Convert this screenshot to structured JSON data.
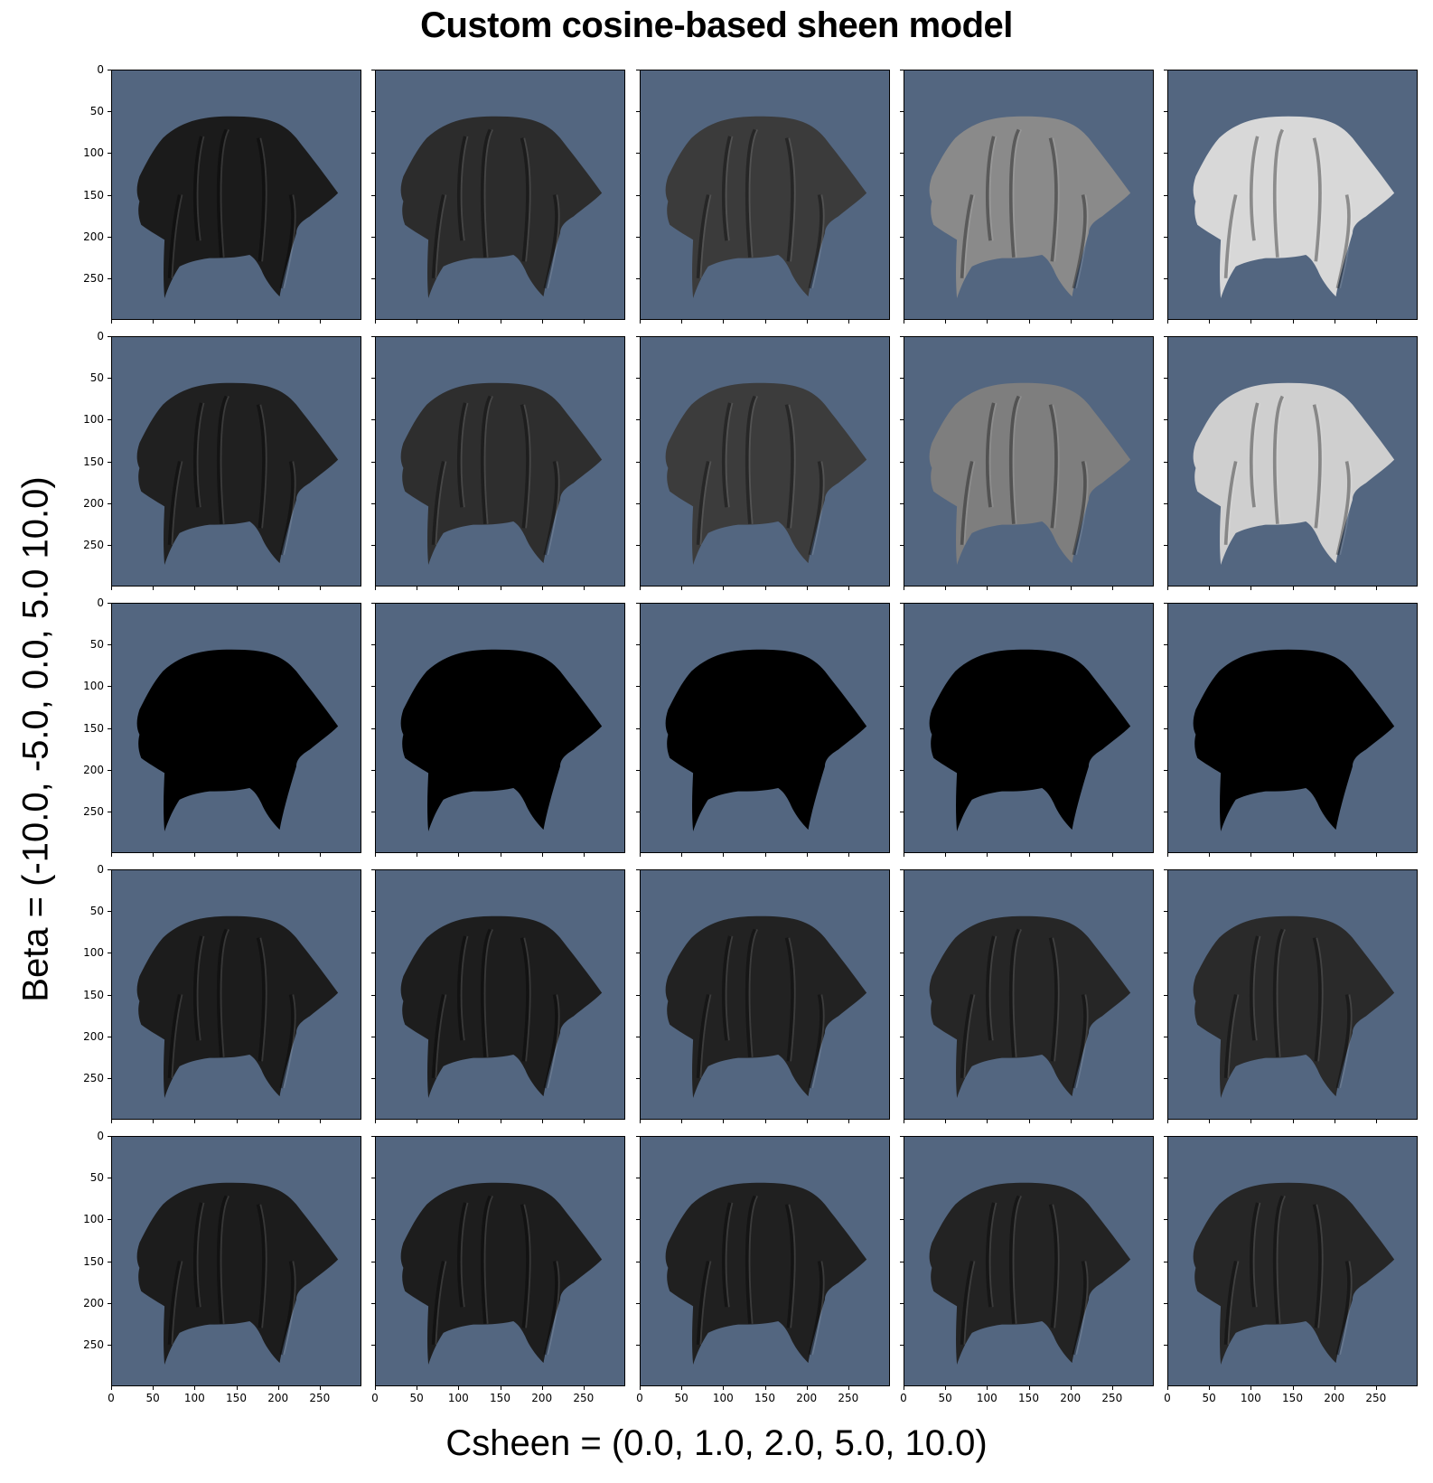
{
  "title": "Custom cosine-based sheen model",
  "ylabel": "Beta = (-10.0, -5.0, 0.0, 5.0 10.0)",
  "xlabel": "Csheen = (0.0, 1.0, 2.0, 5.0, 10.0)",
  "colors": {
    "background": "#536680",
    "cloth_black": "#000000"
  },
  "axis": {
    "ytick_labels": [
      "0",
      "50",
      "100",
      "150",
      "200",
      "250"
    ],
    "xtick_labels": [
      "0",
      "50",
      "100",
      "150",
      "200",
      "250"
    ],
    "tick_values": [
      0,
      50,
      100,
      150,
      200,
      250
    ],
    "image_size": 300
  },
  "grid": {
    "rows": 5,
    "cols": 5,
    "cell_gray": [
      [
        "#1b1b1b",
        "#2c2c2c",
        "#3b3b3b",
        "#8a8a8a",
        "#d8d8d8"
      ],
      [
        "#202020",
        "#2e2e2e",
        "#3c3c3c",
        "#7e7e7e",
        "#cfcfcf"
      ],
      [
        "#000000",
        "#000000",
        "#000000",
        "#000000",
        "#000000"
      ],
      [
        "#1c1c1c",
        "#1d1d1d",
        "#222222",
        "#262626",
        "#2a2a2a"
      ],
      [
        "#1c1c1c",
        "#1d1d1d",
        "#202020",
        "#232323",
        "#262626"
      ]
    ]
  }
}
